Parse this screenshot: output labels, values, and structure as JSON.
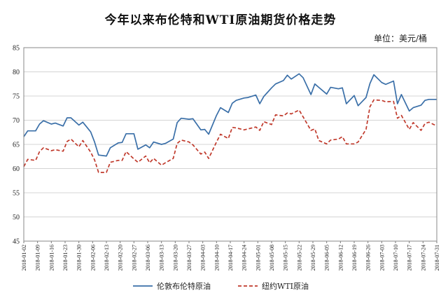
{
  "chart_data": {
    "type": "line",
    "title": "今年以来布伦特和WTI原油期货价格走势",
    "unit_label": "单位：美元/桶",
    "ylim": [
      45,
      85
    ],
    "yticks": [
      45,
      50,
      55,
      60,
      65,
      70,
      75,
      80,
      85
    ],
    "grid": true,
    "legend_position": "bottom",
    "x_start": "2018-01-02",
    "x_end": "2018-07-31",
    "x_tick_labels": [
      "2018-01-02",
      "2018-01-09",
      "2018-01-16",
      "2018-01-23",
      "2018-01-30",
      "2018-02-06",
      "2018-02-13",
      "2018-02-20",
      "2018-02-27",
      "2018-03-06",
      "2018-03-13",
      "2018-03-20",
      "2018-03-27",
      "2018-04-03",
      "2018-04-10",
      "2018-04-17",
      "2018-04-24",
      "2018-05-01",
      "2018-05-08",
      "2018-05-15",
      "2018-05-22",
      "2018-05-29",
      "2018-06-05",
      "2018-06-12",
      "2018-06-19",
      "2018-06-26",
      "2018-07-03",
      "2018-07-10",
      "2018-07-17",
      "2018-07-24",
      "2018-07-31"
    ],
    "series": [
      {
        "name": "伦敦布伦特原油",
        "color": "#3a6fa8",
        "style": "solid",
        "x": [
          "2018-01-02",
          "2018-01-04",
          "2018-01-08",
          "2018-01-10",
          "2018-01-12",
          "2018-01-16",
          "2018-01-18",
          "2018-01-22",
          "2018-01-24",
          "2018-01-26",
          "2018-01-30",
          "2018-02-01",
          "2018-02-05",
          "2018-02-07",
          "2018-02-09",
          "2018-02-13",
          "2018-02-15",
          "2018-02-19",
          "2018-02-21",
          "2018-02-23",
          "2018-02-27",
          "2018-03-01",
          "2018-03-05",
          "2018-03-07",
          "2018-03-09",
          "2018-03-13",
          "2018-03-15",
          "2018-03-19",
          "2018-03-21",
          "2018-03-23",
          "2018-03-27",
          "2018-03-29",
          "2018-04-02",
          "2018-04-04",
          "2018-04-06",
          "2018-04-10",
          "2018-04-12",
          "2018-04-16",
          "2018-04-18",
          "2018-04-20",
          "2018-04-24",
          "2018-04-26",
          "2018-04-30",
          "2018-05-02",
          "2018-05-04",
          "2018-05-08",
          "2018-05-10",
          "2018-05-14",
          "2018-05-16",
          "2018-05-18",
          "2018-05-22",
          "2018-05-24",
          "2018-05-28",
          "2018-05-30",
          "2018-06-01",
          "2018-06-05",
          "2018-06-07",
          "2018-06-11",
          "2018-06-13",
          "2018-06-15",
          "2018-06-19",
          "2018-06-21",
          "2018-06-25",
          "2018-06-27",
          "2018-06-29",
          "2018-07-03",
          "2018-07-05",
          "2018-07-09",
          "2018-07-11",
          "2018-07-13",
          "2018-07-17",
          "2018-07-19",
          "2018-07-23",
          "2018-07-25",
          "2018-07-27",
          "2018-07-31"
        ],
        "values": [
          66.6,
          67.8,
          67.8,
          69.2,
          69.9,
          69.2,
          69.4,
          68.8,
          70.5,
          70.5,
          69.0,
          69.6,
          67.6,
          65.5,
          62.8,
          62.6,
          64.3,
          65.3,
          65.4,
          67.2,
          67.2,
          64.0,
          64.9,
          64.3,
          65.5,
          65.0,
          65.2,
          66.1,
          69.5,
          70.4,
          70.2,
          70.3,
          68.0,
          68.1,
          67.1,
          71.0,
          72.6,
          71.6,
          73.5,
          74.1,
          74.6,
          74.7,
          75.2,
          73.4,
          74.9,
          76.7,
          77.5,
          78.2,
          79.3,
          78.5,
          79.6,
          78.8,
          75.3,
          77.5,
          76.8,
          75.4,
          76.8,
          76.5,
          76.7,
          73.4,
          75.1,
          73.0,
          74.7,
          77.6,
          79.4,
          77.8,
          77.4,
          78.1,
          73.4,
          75.3,
          71.9,
          72.6,
          73.1,
          74.1,
          74.3,
          74.3
        ]
      },
      {
        "name": "纽约WTI原油",
        "color": "#c0392b",
        "style": "dashed",
        "x": [
          "2018-01-02",
          "2018-01-04",
          "2018-01-08",
          "2018-01-10",
          "2018-01-12",
          "2018-01-16",
          "2018-01-18",
          "2018-01-22",
          "2018-01-24",
          "2018-01-26",
          "2018-01-30",
          "2018-02-01",
          "2018-02-05",
          "2018-02-07",
          "2018-02-09",
          "2018-02-13",
          "2018-02-15",
          "2018-02-19",
          "2018-02-21",
          "2018-02-23",
          "2018-02-27",
          "2018-03-01",
          "2018-03-05",
          "2018-03-07",
          "2018-03-09",
          "2018-03-13",
          "2018-03-15",
          "2018-03-19",
          "2018-03-21",
          "2018-03-23",
          "2018-03-27",
          "2018-03-29",
          "2018-04-02",
          "2018-04-04",
          "2018-04-06",
          "2018-04-10",
          "2018-04-12",
          "2018-04-16",
          "2018-04-18",
          "2018-04-20",
          "2018-04-24",
          "2018-04-26",
          "2018-04-30",
          "2018-05-02",
          "2018-05-04",
          "2018-05-08",
          "2018-05-10",
          "2018-05-14",
          "2018-05-16",
          "2018-05-18",
          "2018-05-22",
          "2018-05-24",
          "2018-05-28",
          "2018-05-30",
          "2018-06-01",
          "2018-06-05",
          "2018-06-07",
          "2018-06-11",
          "2018-06-13",
          "2018-06-15",
          "2018-06-19",
          "2018-06-21",
          "2018-06-25",
          "2018-06-27",
          "2018-06-29",
          "2018-07-03",
          "2018-07-05",
          "2018-07-09",
          "2018-07-11",
          "2018-07-13",
          "2018-07-17",
          "2018-07-19",
          "2018-07-23",
          "2018-07-25",
          "2018-07-27",
          "2018-07-31"
        ],
        "values": [
          60.4,
          61.9,
          61.7,
          63.5,
          64.3,
          63.7,
          63.9,
          63.6,
          65.6,
          66.1,
          64.5,
          65.8,
          63.4,
          61.8,
          59.2,
          59.2,
          61.3,
          61.7,
          61.7,
          63.5,
          62.0,
          61.3,
          62.6,
          61.2,
          62.1,
          60.7,
          61.2,
          62.1,
          65.2,
          65.9,
          65.5,
          64.9,
          63.0,
          63.4,
          62.1,
          65.5,
          67.1,
          66.2,
          68.5,
          68.4,
          68.0,
          68.2,
          68.6,
          67.9,
          69.7,
          69.1,
          71.1,
          70.9,
          71.5,
          71.3,
          72.1,
          70.7,
          67.9,
          68.2,
          65.8,
          65.1,
          65.9,
          66.1,
          66.6,
          65.1,
          65.1,
          65.5,
          68.1,
          72.8,
          74.2,
          74.1,
          73.8,
          73.9,
          70.4,
          71.0,
          68.1,
          69.5,
          67.9,
          69.3,
          69.6,
          68.8
        ]
      }
    ]
  }
}
